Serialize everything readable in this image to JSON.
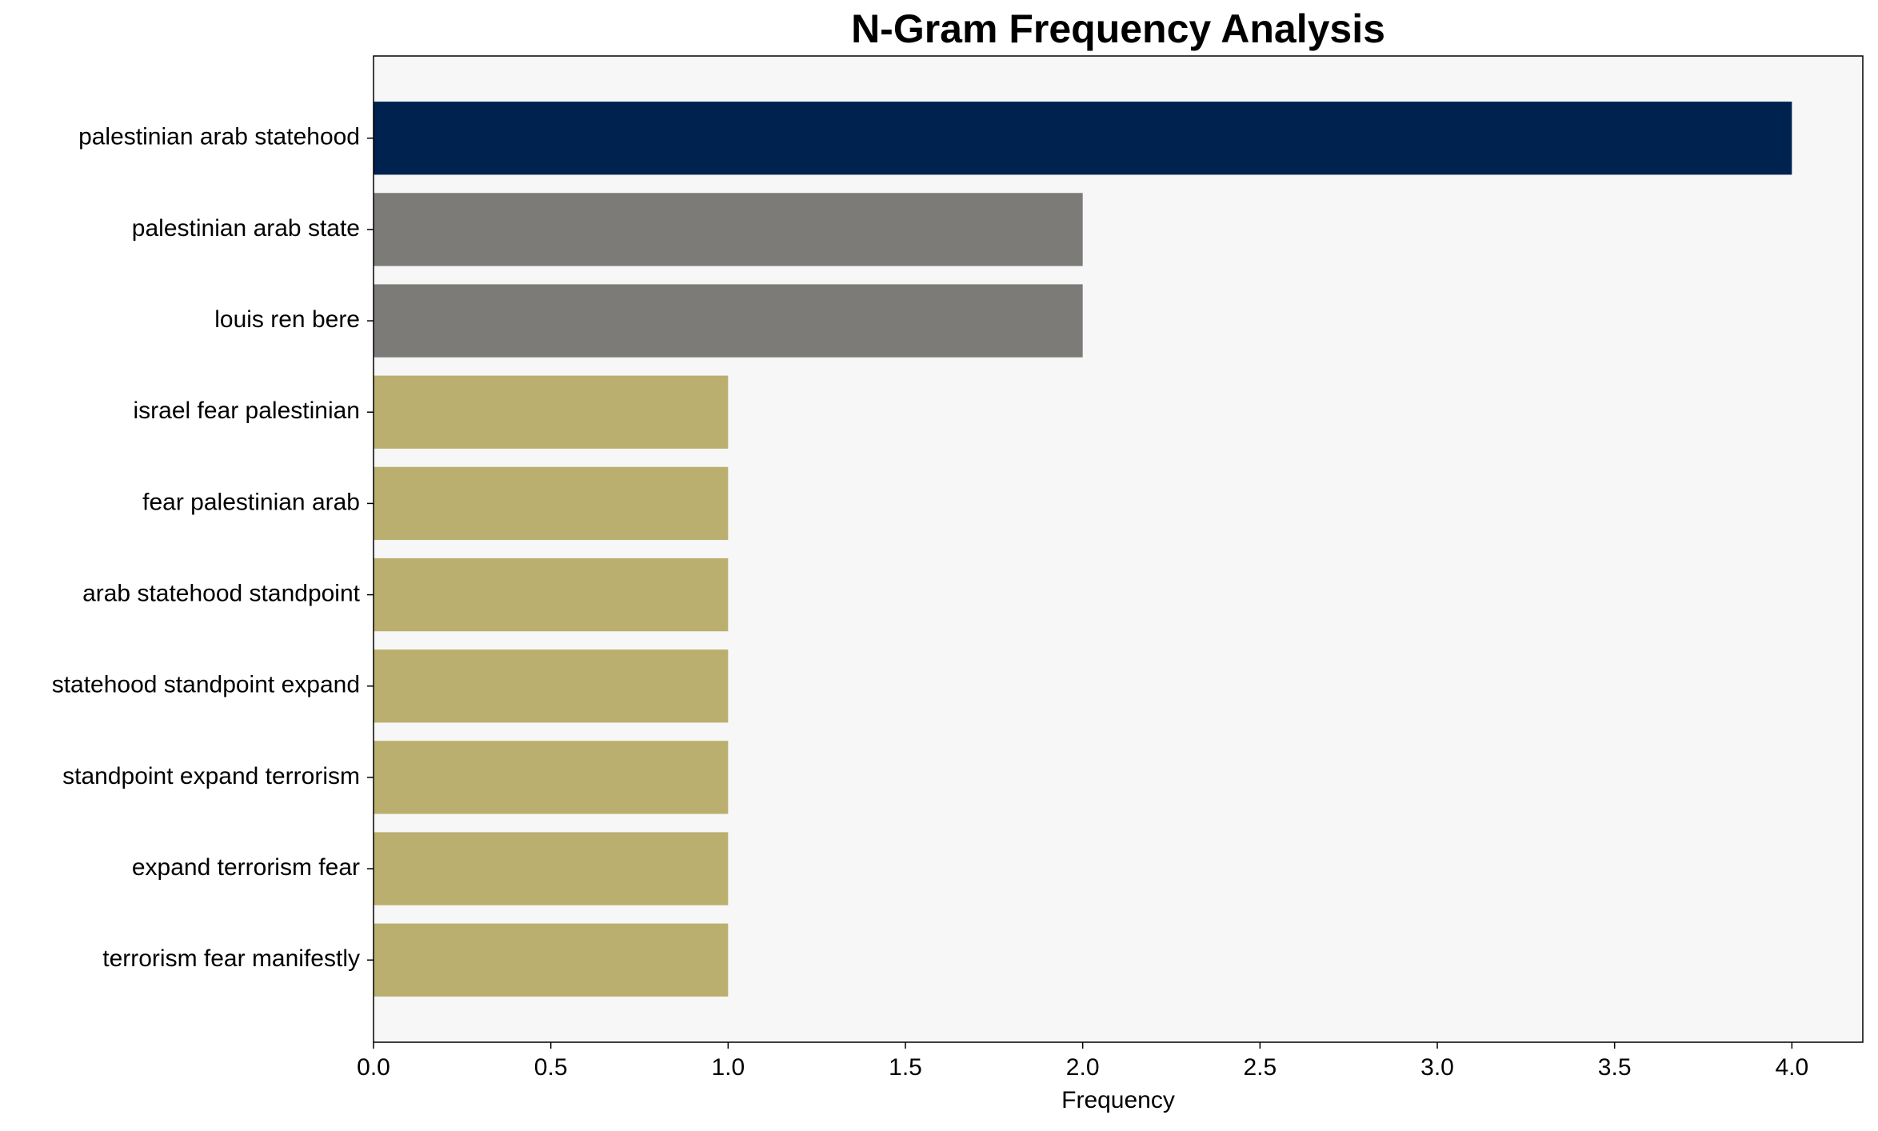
{
  "chart_data": {
    "type": "barh",
    "title": "N-Gram Frequency Analysis",
    "x_label": "Frequency",
    "categories": [
      "palestinian arab statehood",
      "palestinian arab state",
      "louis ren bere",
      "israel fear palestinian",
      "fear palestinian arab",
      "arab statehood standpoint",
      "statehood standpoint expand",
      "standpoint expand terrorism",
      "expand terrorism fear",
      "terrorism fear manifestly"
    ],
    "values": [
      4,
      2,
      2,
      1,
      1,
      1,
      1,
      1,
      1,
      1
    ],
    "colors": [
      "#00224e",
      "#7c7b78",
      "#7c7b78",
      "#bbaf6f",
      "#bbaf6f",
      "#bbaf6f",
      "#bbaf6f",
      "#bbaf6f",
      "#bbaf6f",
      "#bbaf6f"
    ],
    "xlim": [
      0,
      4.2
    ],
    "xticks": [
      {
        "value": 0,
        "label": "0.0"
      },
      {
        "value": 0.5,
        "label": "0.5"
      },
      {
        "value": 1,
        "label": "1.0"
      },
      {
        "value": 1.5,
        "label": "1.5"
      },
      {
        "value": 2,
        "label": "2.0"
      },
      {
        "value": 2.5,
        "label": "2.5"
      },
      {
        "value": 3,
        "label": "3.0"
      },
      {
        "value": 3.5,
        "label": "3.5"
      },
      {
        "value": 4,
        "label": "4.0"
      }
    ],
    "grid": false
  }
}
